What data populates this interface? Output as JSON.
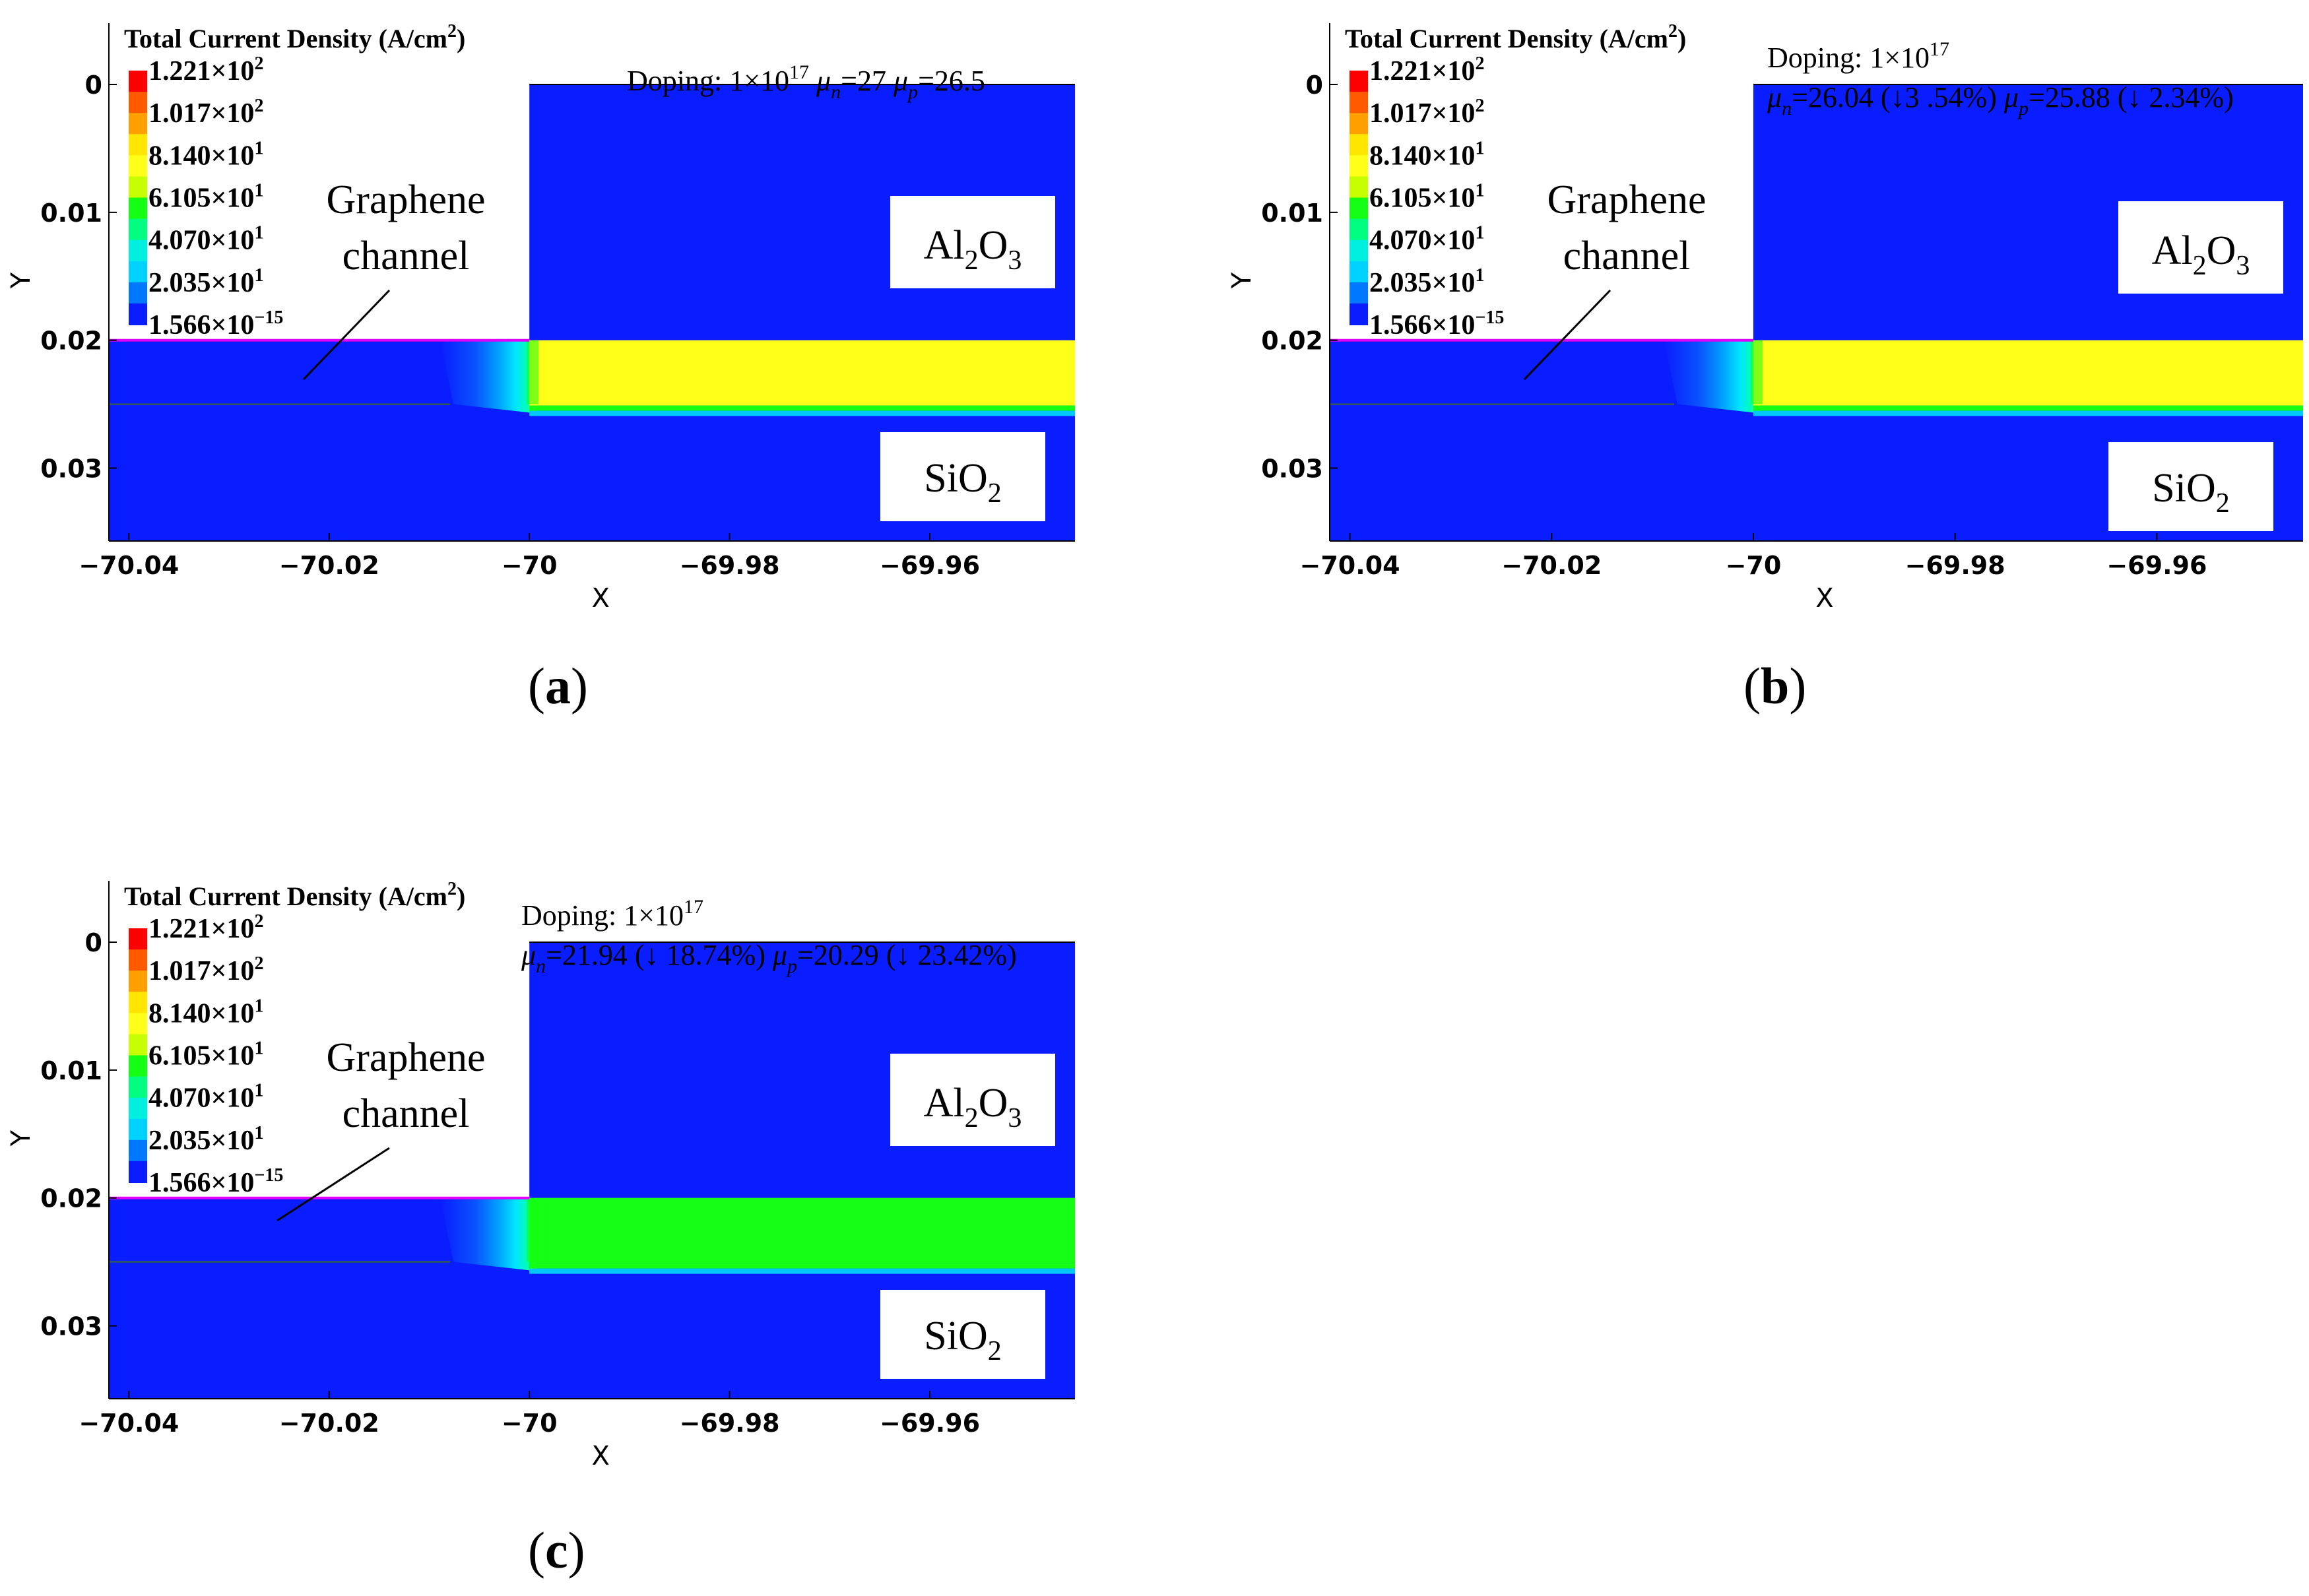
{
  "colors": {
    "oxide_blue": "#0a1dff",
    "yellow": "#ffff19",
    "green": "#14ff14",
    "cyan": "#00e6ff",
    "interface_magenta": "#e000ff",
    "channel_line": "#3a6a2a"
  },
  "legend": {
    "title": "Total Current Density (A/cm",
    "title_sup": "2",
    "title_end": ")",
    "entries": [
      {
        "mant": "1.221×10",
        "exp": "2"
      },
      {
        "mant": "1.017×10",
        "exp": "2"
      },
      {
        "mant": "8.140×10",
        "exp": "1"
      },
      {
        "mant": "6.105×10",
        "exp": "1"
      },
      {
        "mant": "4.070×10",
        "exp": "1"
      },
      {
        "mant": "2.035×10",
        "exp": "1"
      },
      {
        "mant": "1.566×10",
        "exp": "−15"
      }
    ],
    "scale_colors": [
      "#ff0000",
      "#ff5a00",
      "#ffa000",
      "#ffe600",
      "#ffff19",
      "#c8ff00",
      "#14ff14",
      "#00ff80",
      "#00f0e0",
      "#00d2ff",
      "#0078ff",
      "#0a1dff"
    ]
  },
  "labels": {
    "graphene_line1": "Graphene",
    "graphene_line2": "channel",
    "al2o3_main": "Al",
    "al2o3_sub1": "2",
    "al2o3_mid": "O",
    "al2o3_sub2": "3",
    "sio2_main": "SiO",
    "sio2_sub": "2",
    "x_axis": "X",
    "y_axis": "Y"
  },
  "chart_data": [
    {
      "type": "heatmap",
      "panel": "a",
      "caption": "a",
      "title": "Total Current Density (A/cm2)",
      "annotation": {
        "line1_prefix": "Doping: 1×10",
        "line1_exp": "17",
        "mu_n_sub": "n",
        "mu_n_val": "=27",
        "mu_p_sub": "p",
        "mu_p_val": "=26.5",
        "single_line": true
      },
      "channel_fill": "yellow",
      "channel_current_density_A_cm2": 88,
      "x_ticks": [
        -70.04,
        -70.02,
        -70,
        -69.98,
        -69.96
      ],
      "x_tick_labels": [
        "−70.04",
        "−70.02",
        "−70",
        "−69.98",
        "−69.96"
      ],
      "y_ticks": [
        0,
        0.01,
        0.02,
        0.03
      ],
      "y_tick_labels": [
        "0",
        "0.01",
        "0.02",
        "0.03"
      ],
      "xlim": [
        -70.042,
        -69.9455
      ],
      "ylim": [
        0.0357,
        -0.0048
      ],
      "regions": {
        "gate_x": [
          -70.0,
          -69.9455
        ],
        "al2o3_y": [
          0.0,
          0.02
        ],
        "channel_y": [
          0.02,
          0.025
        ],
        "sio2_y": [
          0.025,
          0.0357
        ]
      }
    },
    {
      "type": "heatmap",
      "panel": "b",
      "caption": "b",
      "title": "Total Current Density (A/cm2)",
      "annotation": {
        "line1_prefix": "Doping: 1×10",
        "line1_exp": "17",
        "mu_n_sub": "n",
        "mu_n_val": "=26.04 (↓3 .54%)",
        "mu_p_sub": "p",
        "mu_p_val": "=25.88 (↓ 2.34%)",
        "single_line": false
      },
      "channel_fill": "yellow",
      "channel_current_density_A_cm2": 88,
      "x_ticks": [
        -70.04,
        -70.02,
        -70,
        -69.98,
        -69.96
      ],
      "x_tick_labels": [
        "−70.04",
        "−70.02",
        "−70",
        "−69.98",
        "−69.96"
      ],
      "y_ticks": [
        0,
        0.01,
        0.02,
        0.03
      ],
      "y_tick_labels": [
        "0",
        "0.01",
        "0.02",
        "0.03"
      ],
      "xlim": [
        -70.042,
        -69.9455
      ],
      "ylim": [
        0.0357,
        -0.0048
      ],
      "regions": {
        "gate_x": [
          -70.0,
          -69.9455
        ],
        "al2o3_y": [
          0.0,
          0.02
        ],
        "channel_y": [
          0.02,
          0.025
        ],
        "sio2_y": [
          0.025,
          0.0357
        ]
      }
    },
    {
      "type": "heatmap",
      "panel": "c",
      "caption": "c",
      "title": "Total Current Density (A/cm2)",
      "annotation": {
        "line1_prefix": "Doping: 1×10",
        "line1_exp": "17",
        "mu_n_sub": "n",
        "mu_n_val": "=21.94 (↓ 18.74%)",
        "mu_p_sub": "p",
        "mu_p_val": "=20.29 (↓ 23.42%)",
        "single_line": false
      },
      "channel_fill": "green",
      "channel_current_density_A_cm2": 70,
      "x_ticks": [
        -70.04,
        -70.02,
        -70,
        -69.98,
        -69.96
      ],
      "x_tick_labels": [
        "−70.04",
        "−70.02",
        "−70",
        "−69.98",
        "−69.96"
      ],
      "y_ticks": [
        0,
        0.01,
        0.02,
        0.03
      ],
      "y_tick_labels": [
        "0",
        "0.01",
        "0.02",
        "0.03"
      ],
      "xlim": [
        -70.042,
        -69.9455
      ],
      "ylim": [
        0.0357,
        -0.0048
      ],
      "regions": {
        "gate_x": [
          -70.0,
          -69.9455
        ],
        "al2o3_y": [
          0.0,
          0.02
        ],
        "channel_y": [
          0.02,
          0.025
        ],
        "sio2_y": [
          0.025,
          0.0357
        ]
      }
    }
  ]
}
